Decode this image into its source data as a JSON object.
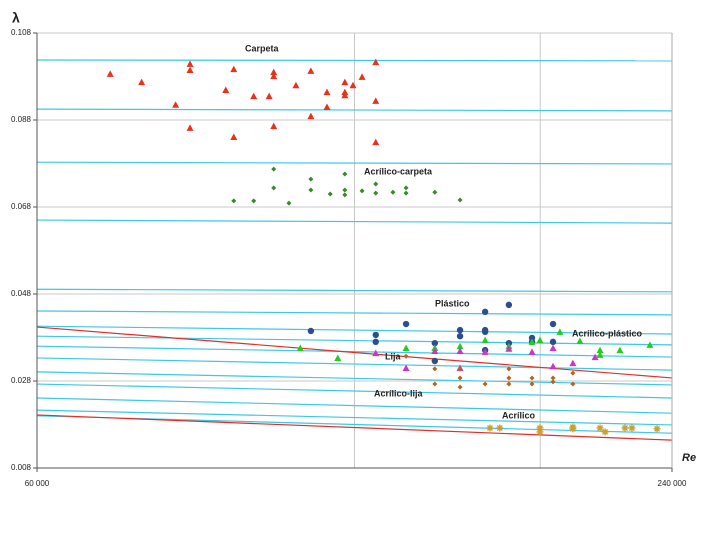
{
  "chart_data": {
    "type": "scatter",
    "ylabel": "λ",
    "xlabel": "Re",
    "xscale": "log",
    "xlim": [
      60000,
      240000
    ],
    "xticks": [
      {
        "value": 60000,
        "label": "60 000"
      },
      {
        "value": 240000,
        "label": "240 000"
      }
    ],
    "xgrid": [
      120000,
      180000
    ],
    "ylim": [
      0.008,
      0.108
    ],
    "yticks": [
      0.008,
      0.028,
      0.048,
      0.068,
      0.088,
      0.108
    ],
    "grid": true,
    "reference_x": [
      60000,
      240000
    ],
    "reference_lines": [
      {
        "color": "#3cc8e6",
        "values": [
          0.1018,
          0.1016
        ]
      },
      {
        "color": "#3cc8e6",
        "values": [
          0.0905,
          0.0901
        ]
      },
      {
        "color": "#3cc8e6",
        "values": [
          0.0783,
          0.0779
        ]
      },
      {
        "color": "#3cc8e6",
        "values": [
          0.065,
          0.0643
        ]
      },
      {
        "color": "#3cc8e6",
        "values": [
          0.0491,
          0.0485
        ]
      },
      {
        "color": "#3cc8e6",
        "values": [
          0.0441,
          0.0432
        ]
      },
      {
        "color": "#3cc8e6",
        "values": [
          0.0406,
          0.0388
        ]
      },
      {
        "color": "#3cc8e6",
        "values": [
          0.0383,
          0.0363
        ]
      },
      {
        "color": "#3cc8e6",
        "values": [
          0.036,
          0.0335
        ]
      },
      {
        "color": "#3cc8e6",
        "values": [
          0.0333,
          0.0305
        ]
      },
      {
        "color": "#3cc8e6",
        "values": [
          0.0301,
          0.0271
        ]
      },
      {
        "color": "#3cc8e6",
        "values": [
          0.0273,
          0.0241
        ]
      },
      {
        "color": "#3cc8e6",
        "values": [
          0.0241,
          0.0206
        ]
      },
      {
        "color": "#3cc8e6",
        "values": [
          0.0213,
          0.0179
        ]
      },
      {
        "color": "#3cc8e6",
        "values": [
          0.02,
          0.016
        ]
      },
      {
        "color": "#e0302a",
        "values": [
          0.0404,
          0.0287
        ]
      },
      {
        "color": "#e0302a",
        "values": [
          0.0202,
          0.0144
        ]
      }
    ],
    "series": [
      {
        "name": "Carpeta",
        "color": "#e8321c",
        "marker": "triangle",
        "x": [
          70400,
          75400,
          81200,
          83800,
          83800,
          83800,
          90600,
          92200,
          92200,
          96300,
          99600,
          100600,
          100600,
          100600,
          105600,
          109100,
          109100,
          113000,
          113000,
          117500,
          117500,
          117500,
          119600,
          122000,
          125700,
          125700,
          125700
        ],
        "values": [
          0.0986,
          0.0967,
          0.0915,
          0.1009,
          0.0995,
          0.0862,
          0.0949,
          0.0997,
          0.0841,
          0.0935,
          0.0935,
          0.099,
          0.0981,
          0.0866,
          0.096,
          0.0993,
          0.0889,
          0.0944,
          0.091,
          0.0967,
          0.0944,
          0.0937,
          0.096,
          0.0979,
          0.1013,
          0.0924,
          0.0829
        ]
      },
      {
        "name": "Acrílico-carpeta",
        "color": "#3a8a2a",
        "marker": "diamond",
        "x": [
          92200,
          96300,
          100600,
          100600,
          104000,
          109100,
          109100,
          113800,
          117500,
          117500,
          117500,
          122000,
          125700,
          125700,
          130500,
          134300,
          134300,
          143000,
          151100
        ],
        "values": [
          0.0694,
          0.0694,
          0.0767,
          0.0724,
          0.0689,
          0.0744,
          0.0719,
          0.071,
          0.0756,
          0.0719,
          0.0708,
          0.0717,
          0.0733,
          0.0712,
          0.0714,
          0.0724,
          0.0712,
          0.0714,
          0.0696
        ]
      },
      {
        "name": "Plástico",
        "color": "#2a4f8f",
        "marker": "circle",
        "x": [
          109100,
          125700,
          125700,
          134300,
          143000,
          143000,
          151100,
          151100,
          159600,
          159600,
          159600,
          159600,
          168100,
          168100,
          176800,
          176800,
          185100,
          185100
        ],
        "values": [
          0.0395,
          0.0386,
          0.037,
          0.0411,
          0.0367,
          0.0326,
          0.0397,
          0.0383,
          0.0397,
          0.0393,
          0.0351,
          0.0439,
          0.0455,
          0.0367,
          0.0379,
          0.037,
          0.0411,
          0.037
        ]
      },
      {
        "name": "Acrílico-plástico",
        "color": "#22cc22",
        "marker": "triangle",
        "x": [
          106600,
          115700,
          134300,
          143000,
          151100,
          159600,
          168100,
          176800,
          179900,
          187900,
          196300,
          205100,
          205100,
          214200,
          228700
        ],
        "values": [
          0.0356,
          0.0333,
          0.0356,
          0.0356,
          0.036,
          0.0374,
          0.036,
          0.037,
          0.0374,
          0.0393,
          0.0372,
          0.0351,
          0.034,
          0.0351,
          0.0363
        ]
      },
      {
        "name": "Lija",
        "color": "#cc33cc",
        "marker": "triangle",
        "x": [
          125700,
          134300,
          143000,
          151100,
          151100,
          159600,
          168100,
          176800,
          185100,
          185100,
          193300,
          202900
        ],
        "values": [
          0.0344,
          0.031,
          0.0349,
          0.0349,
          0.031,
          0.0347,
          0.0354,
          0.0347,
          0.0356,
          0.0314,
          0.0321,
          0.0335
        ]
      },
      {
        "name": "Acrílico-lija",
        "color": "#b5651d",
        "marker": "diamond",
        "x": [
          134300,
          143000,
          143000,
          151100,
          151100,
          151100,
          159600,
          168100,
          168100,
          168100,
          176800,
          176800,
          185100,
          185100,
          193300,
          193300
        ],
        "values": [
          0.0337,
          0.0308,
          0.0273,
          0.0308,
          0.0287,
          0.0266,
          0.0273,
          0.0308,
          0.0287,
          0.0273,
          0.0287,
          0.0273,
          0.0287,
          0.0278,
          0.0298,
          0.0273
        ]
      },
      {
        "name": "Acrílico",
        "color": "#c8a030",
        "marker": "star",
        "x": [
          161300,
          164800,
          179900,
          179900,
          193300,
          193300,
          205100,
          207400,
          216600,
          219900,
          232300
        ],
        "values": [
          0.0172,
          0.0172,
          0.0172,
          0.0163,
          0.0174,
          0.017,
          0.0172,
          0.0163,
          0.0172,
          0.0172,
          0.017
        ]
      }
    ]
  }
}
